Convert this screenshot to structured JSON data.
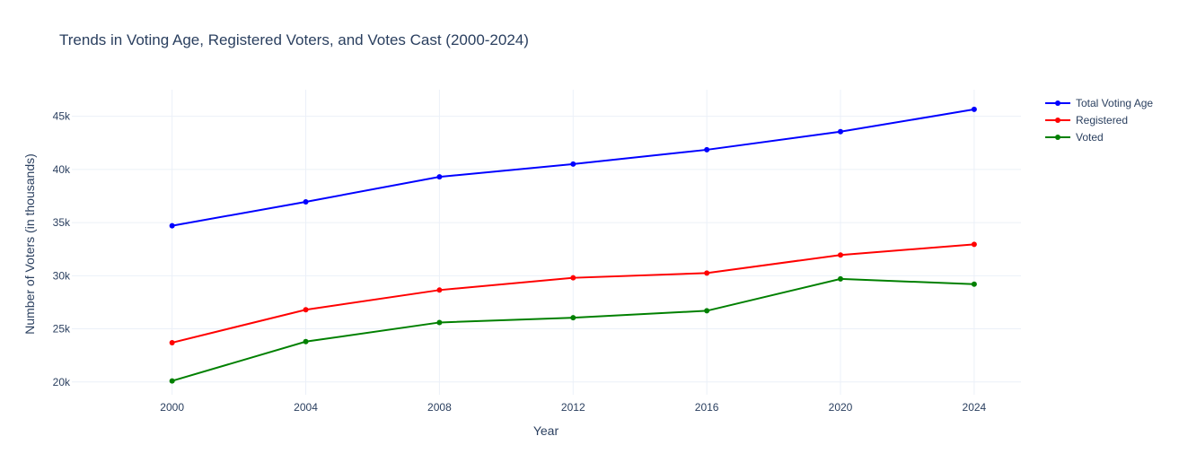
{
  "chart_data": {
    "type": "line",
    "title": "Trends in Voting Age, Registered Voters, and Votes Cast (2000-2024)",
    "xlabel": "Year",
    "ylabel": "Number of Voters (in thousands)",
    "x": [
      2000,
      2004,
      2008,
      2012,
      2016,
      2020,
      2024
    ],
    "x_tick_labels": [
      "2000",
      "2004",
      "2008",
      "2012",
      "2016",
      "2020",
      "2024"
    ],
    "y_ticks": [
      20000,
      25000,
      30000,
      35000,
      40000,
      45000
    ],
    "y_tick_labels": [
      "20k",
      "25k",
      "30k",
      "35k",
      "40k",
      "45k"
    ],
    "xlim": [
      1997,
      2025.4
    ],
    "ylim": [
      18800,
      47500
    ],
    "grid": true,
    "legend_position": "top-right",
    "series": [
      {
        "name": "Total Voting Age",
        "color": "#0000ff",
        "values": [
          34700,
          36950,
          39300,
          40500,
          41850,
          43550,
          45650
        ]
      },
      {
        "name": "Registered",
        "color": "#ff0000",
        "values": [
          23700,
          26800,
          28650,
          29800,
          30250,
          31950,
          32950
        ]
      },
      {
        "name": "Voted",
        "color": "#008000",
        "values": [
          20100,
          23800,
          25600,
          26050,
          26700,
          29700,
          29200
        ]
      }
    ]
  }
}
